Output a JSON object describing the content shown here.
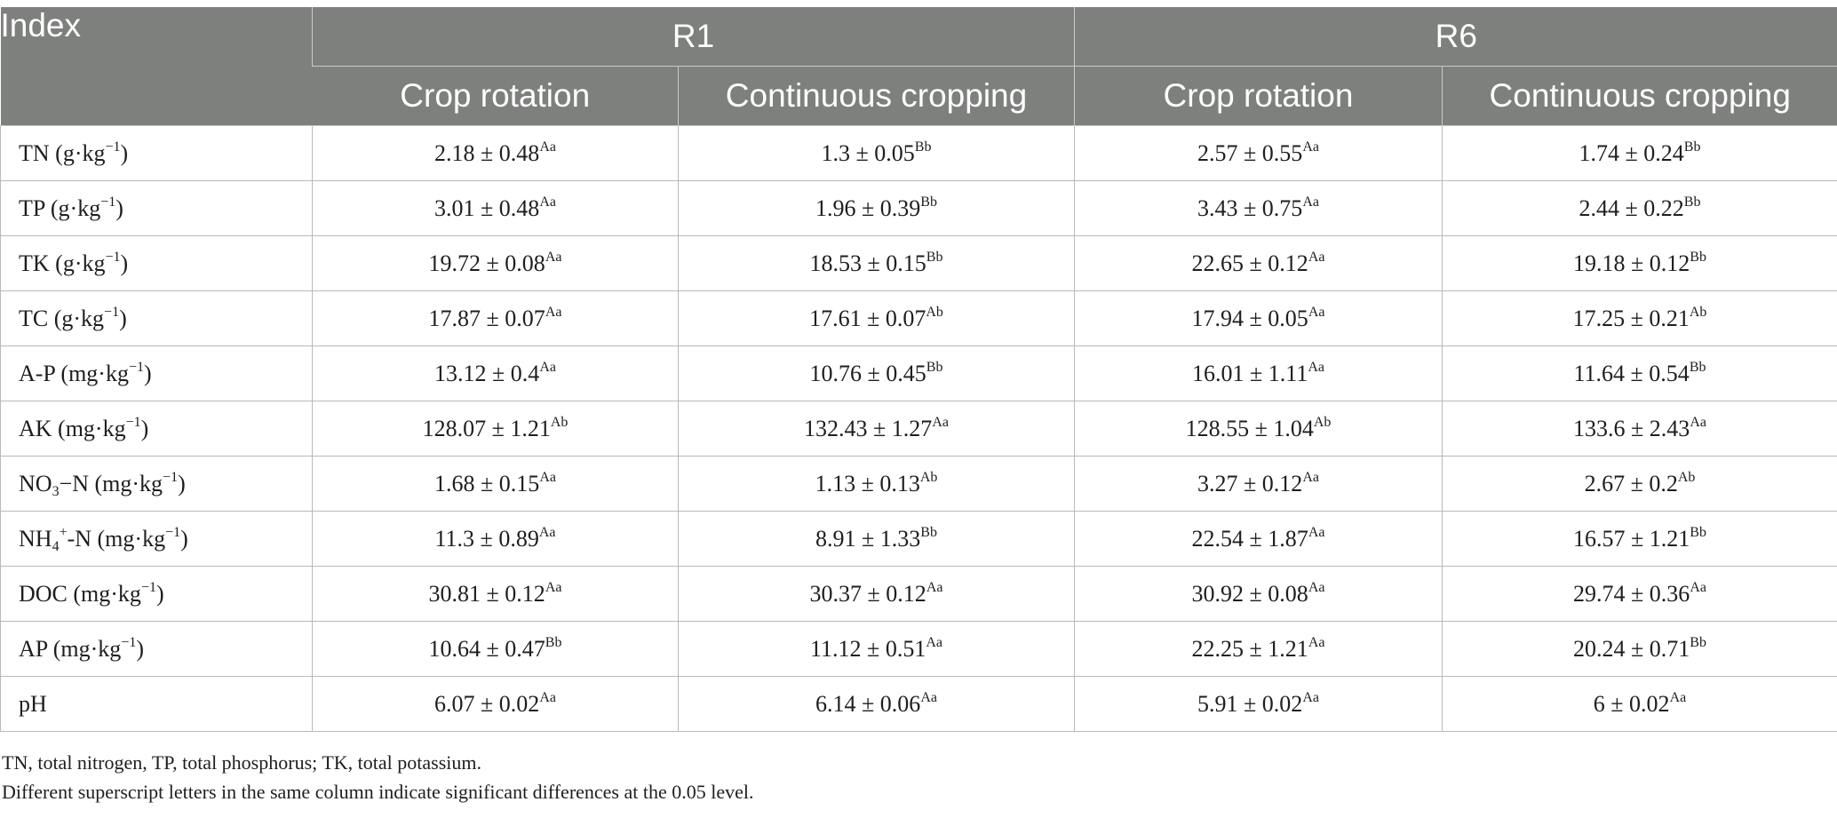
{
  "table": {
    "header": {
      "index": "Index",
      "groups": [
        "R1",
        "R6"
      ],
      "subcolumns": [
        "Crop rotation",
        "Continuous cropping",
        "Crop rotation",
        "Continuous cropping"
      ]
    },
    "rows": [
      {
        "label": "TN (g·kg",
        "label_sup": "−1",
        "label_end": ")",
        "cells": [
          {
            "v": "2.18 ± 0.48",
            "s": "Aa"
          },
          {
            "v": "1.3 ± 0.05",
            "s": "Bb"
          },
          {
            "v": "2.57 ± 0.55",
            "s": "Aa"
          },
          {
            "v": "1.74 ± 0.24",
            "s": "Bb"
          }
        ]
      },
      {
        "label": "TP (g·kg",
        "label_sup": "−1",
        "label_end": ")",
        "cells": [
          {
            "v": "3.01 ± 0.48",
            "s": "Aa"
          },
          {
            "v": "1.96 ± 0.39",
            "s": "Bb"
          },
          {
            "v": "3.43 ± 0.75",
            "s": "Aa"
          },
          {
            "v": "2.44 ± 0.22",
            "s": "Bb"
          }
        ]
      },
      {
        "label": "TK (g·kg",
        "label_sup": "−1",
        "label_end": ")",
        "cells": [
          {
            "v": "19.72 ± 0.08",
            "s": "Aa"
          },
          {
            "v": "18.53 ± 0.15",
            "s": "Bb"
          },
          {
            "v": "22.65 ± 0.12",
            "s": "Aa"
          },
          {
            "v": "19.18 ± 0.12",
            "s": "Bb"
          }
        ]
      },
      {
        "label": "TC (g·kg",
        "label_sup": "−1",
        "label_end": ")",
        "cells": [
          {
            "v": "17.87 ± 0.07",
            "s": "Aa"
          },
          {
            "v": "17.61 ± 0.07",
            "s": "Ab"
          },
          {
            "v": "17.94 ± 0.05",
            "s": "Aa"
          },
          {
            "v": "17.25 ± 0.21",
            "s": "Ab"
          }
        ]
      },
      {
        "label": "A-P (mg·kg",
        "label_sup": "−1",
        "label_end": ")",
        "cells": [
          {
            "v": "13.12 ± 0.4",
            "s": "Aa"
          },
          {
            "v": "10.76 ± 0.45",
            "s": "Bb"
          },
          {
            "v": "16.01 ± 1.11",
            "s": "Aa"
          },
          {
            "v": "11.64 ± 0.54",
            "s": "Bb"
          }
        ]
      },
      {
        "label": "AK (mg·kg",
        "label_sup": "−1",
        "label_end": ")",
        "cells": [
          {
            "v": "128.07 ± 1.21",
            "s": "Ab"
          },
          {
            "v": "132.43 ± 1.27",
            "s": "Aa"
          },
          {
            "v": "128.55 ± 1.04",
            "s": "Ab"
          },
          {
            "v": "133.6 ± 2.43",
            "s": "Aa"
          }
        ]
      },
      {
        "label": "NO",
        "label_sub": "3",
        "label_mid": "−N (mg·kg",
        "label_sup": "−1",
        "label_end": ")",
        "cells": [
          {
            "v": "1.68 ± 0.15",
            "s": "Aa"
          },
          {
            "v": "1.13 ± 0.13",
            "s": "Ab"
          },
          {
            "v": "3.27 ± 0.12",
            "s": "Aa"
          },
          {
            "v": "2.67 ± 0.2",
            "s": "Ab"
          }
        ]
      },
      {
        "label": "NH",
        "label_sub": "4",
        "label_sup2": "+",
        "label_mid": "-N (mg·kg",
        "label_sup": "−1",
        "label_end": ")",
        "cells": [
          {
            "v": "11.3 ± 0.89",
            "s": "Aa"
          },
          {
            "v": "8.91 ± 1.33",
            "s": "Bb"
          },
          {
            "v": "22.54 ± 1.87",
            "s": "Aa"
          },
          {
            "v": "16.57 ± 1.21",
            "s": "Bb"
          }
        ]
      },
      {
        "label": "DOC (mg·kg",
        "label_sup": "−1",
        "label_end": ")",
        "cells": [
          {
            "v": "30.81 ± 0.12",
            "s": "Aa"
          },
          {
            "v": "30.37 ± 0.12",
            "s": "Aa"
          },
          {
            "v": "30.92 ± 0.08",
            "s": "Aa"
          },
          {
            "v": "29.74 ± 0.36",
            "s": "Aa"
          }
        ]
      },
      {
        "label": "AP (mg·kg",
        "label_sup": "−1",
        "label_end": ")",
        "cells": [
          {
            "v": "10.64 ± 0.47",
            "s": "Bb"
          },
          {
            "v": "11.12 ± 0.51",
            "s": "Aa"
          },
          {
            "v": "22.25 ± 1.21",
            "s": "Aa"
          },
          {
            "v": "20.24 ± 0.71",
            "s": "Bb"
          }
        ]
      },
      {
        "label": "pH",
        "cells": [
          {
            "v": "6.07 ± 0.02",
            "s": "Aa"
          },
          {
            "v": "6.14 ± 0.06",
            "s": "Aa"
          },
          {
            "v": "5.91 ± 0.02",
            "s": "Aa"
          },
          {
            "v": "6 ± 0.02",
            "s": "Aa"
          }
        ]
      }
    ]
  },
  "notes": [
    "TN, total nitrogen, TP, total phosphorus; TK, total potassium.",
    "Different superscript letters in the same column indicate significant differences at the 0.05 level."
  ],
  "colors": {
    "header_bg": "#7e807e",
    "header_text": "#ffffff",
    "border": "#b9b9b9"
  }
}
